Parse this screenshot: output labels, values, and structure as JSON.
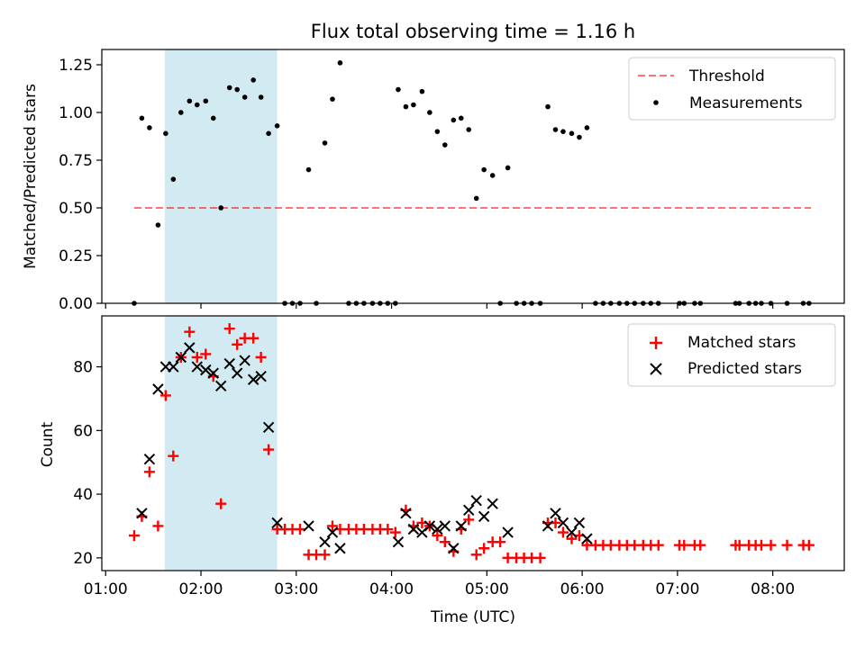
{
  "chart_data": [
    {
      "type": "scatter",
      "title": "Flux total observing time = 1.16 h",
      "xlabel": "",
      "ylabel": "Matched/Predicted stars",
      "ylim": [
        0,
        1.33
      ],
      "yticks": [
        "0.00",
        "0.25",
        "0.50",
        "0.75",
        "1.00",
        "1.25"
      ],
      "xlim_hours": [
        0.96,
        8.75
      ],
      "shaded_region_hours": [
        1.62,
        2.8
      ],
      "shaded_color": "#add8e6",
      "grid": false,
      "legend_position": "top-right",
      "threshold": {
        "name": "Threshold",
        "value": 0.5,
        "x_range_hours": [
          1.3,
          8.4
        ],
        "color": "#ff0000",
        "style": "dashed"
      },
      "series": [
        {
          "name": "Measurements",
          "color": "#000000",
          "marker": "dot",
          "points": [
            [
              1.3,
              0
            ],
            [
              1.38,
              0.97
            ],
            [
              1.46,
              0.92
            ],
            [
              1.55,
              0.41
            ],
            [
              1.63,
              0.89
            ],
            [
              1.71,
              0.65
            ],
            [
              1.79,
              1.0
            ],
            [
              1.88,
              1.06
            ],
            [
              1.96,
              1.04
            ],
            [
              2.05,
              1.06
            ],
            [
              2.13,
              0.97
            ],
            [
              2.21,
              0.5
            ],
            [
              2.3,
              1.13
            ],
            [
              2.38,
              1.12
            ],
            [
              2.46,
              1.08
            ],
            [
              2.55,
              1.17
            ],
            [
              2.63,
              1.08
            ],
            [
              2.71,
              0.89
            ],
            [
              2.8,
              0.93
            ],
            [
              2.88,
              0
            ],
            [
              2.96,
              0
            ],
            [
              3.04,
              0
            ],
            [
              3.13,
              0.7
            ],
            [
              3.21,
              0
            ],
            [
              3.3,
              0.84
            ],
            [
              3.38,
              1.07
            ],
            [
              3.46,
              1.26
            ],
            [
              3.55,
              0
            ],
            [
              3.63,
              0
            ],
            [
              3.71,
              0
            ],
            [
              3.8,
              0
            ],
            [
              3.88,
              0
            ],
            [
              3.96,
              0
            ],
            [
              4.04,
              0
            ],
            [
              4.07,
              1.12
            ],
            [
              4.15,
              1.03
            ],
            [
              4.23,
              1.04
            ],
            [
              4.32,
              1.11
            ],
            [
              4.4,
              1.0
            ],
            [
              4.48,
              0.9
            ],
            [
              4.56,
              0.83
            ],
            [
              4.65,
              0.96
            ],
            [
              4.73,
              0.97
            ],
            [
              4.81,
              0.91
            ],
            [
              4.89,
              0.55
            ],
            [
              4.97,
              0.7
            ],
            [
              5.06,
              0.67
            ],
            [
              5.14,
              0
            ],
            [
              5.22,
              0.71
            ],
            [
              5.31,
              0
            ],
            [
              5.39,
              0
            ],
            [
              5.47,
              0
            ],
            [
              5.56,
              0
            ],
            [
              5.64,
              1.03
            ],
            [
              5.72,
              0.91
            ],
            [
              5.8,
              0.9
            ],
            [
              5.89,
              0.89
            ],
            [
              5.97,
              0.87
            ],
            [
              6.05,
              0.92
            ],
            [
              6.14,
              0
            ],
            [
              6.22,
              0
            ],
            [
              6.3,
              0
            ],
            [
              6.39,
              0
            ],
            [
              6.47,
              0
            ],
            [
              6.55,
              0
            ],
            [
              6.64,
              0
            ],
            [
              6.72,
              0
            ],
            [
              6.8,
              0
            ],
            [
              7.02,
              0
            ],
            [
              7.07,
              0
            ],
            [
              7.18,
              0
            ],
            [
              7.24,
              0
            ],
            [
              7.61,
              0
            ],
            [
              7.65,
              0
            ],
            [
              7.75,
              0
            ],
            [
              7.82,
              0
            ],
            [
              7.88,
              0
            ],
            [
              7.98,
              0
            ],
            [
              8.15,
              0
            ],
            [
              8.32,
              0
            ],
            [
              8.38,
              0
            ]
          ]
        }
      ]
    },
    {
      "type": "scatter",
      "title": "",
      "xlabel": "Time (UTC)",
      "ylabel": "Count",
      "ylim": [
        16,
        96
      ],
      "yticks": [
        "20",
        "40",
        "60",
        "80"
      ],
      "xlim_hours": [
        0.96,
        8.75
      ],
      "xticks": [
        "01:00",
        "02:00",
        "03:00",
        "04:00",
        "05:00",
        "06:00",
        "07:00",
        "08:00"
      ],
      "shaded_region_hours": [
        1.62,
        2.8
      ],
      "shaded_color": "#add8e6",
      "grid": false,
      "legend_position": "top-right",
      "series": [
        {
          "name": "Matched stars",
          "color": "#ff0000",
          "marker": "plus",
          "points": [
            [
              1.3,
              27
            ],
            [
              1.38,
              33
            ],
            [
              1.46,
              47
            ],
            [
              1.55,
              30
            ],
            [
              1.63,
              71
            ],
            [
              1.71,
              52
            ],
            [
              1.79,
              83
            ],
            [
              1.88,
              91
            ],
            [
              1.96,
              83
            ],
            [
              2.05,
              84
            ],
            [
              2.13,
              77
            ],
            [
              2.21,
              37
            ],
            [
              2.3,
              92
            ],
            [
              2.38,
              87
            ],
            [
              2.46,
              89
            ],
            [
              2.55,
              89
            ],
            [
              2.63,
              83
            ],
            [
              2.71,
              54
            ],
            [
              2.8,
              29
            ],
            [
              2.88,
              29
            ],
            [
              2.96,
              29
            ],
            [
              3.04,
              29
            ],
            [
              3.13,
              21
            ],
            [
              3.21,
              21
            ],
            [
              3.3,
              21
            ],
            [
              3.38,
              30
            ],
            [
              3.46,
              29
            ],
            [
              3.55,
              29
            ],
            [
              3.63,
              29
            ],
            [
              3.71,
              29
            ],
            [
              3.8,
              29
            ],
            [
              3.88,
              29
            ],
            [
              3.96,
              29
            ],
            [
              4.04,
              28
            ],
            [
              4.15,
              35
            ],
            [
              4.23,
              30
            ],
            [
              4.32,
              31
            ],
            [
              4.4,
              30
            ],
            [
              4.48,
              27
            ],
            [
              4.56,
              25
            ],
            [
              4.65,
              22
            ],
            [
              4.73,
              29
            ],
            [
              4.81,
              32
            ],
            [
              4.89,
              21
            ],
            [
              4.97,
              23
            ],
            [
              5.06,
              25
            ],
            [
              5.14,
              25
            ],
            [
              5.22,
              20
            ],
            [
              5.31,
              20
            ],
            [
              5.39,
              20
            ],
            [
              5.47,
              20
            ],
            [
              5.56,
              20
            ],
            [
              5.64,
              31
            ],
            [
              5.72,
              31
            ],
            [
              5.8,
              28
            ],
            [
              5.89,
              26
            ],
            [
              5.97,
              27
            ],
            [
              6.05,
              24
            ],
            [
              6.14,
              24
            ],
            [
              6.22,
              24
            ],
            [
              6.3,
              24
            ],
            [
              6.39,
              24
            ],
            [
              6.47,
              24
            ],
            [
              6.55,
              24
            ],
            [
              6.64,
              24
            ],
            [
              6.72,
              24
            ],
            [
              6.8,
              24
            ],
            [
              7.02,
              24
            ],
            [
              7.07,
              24
            ],
            [
              7.18,
              24
            ],
            [
              7.24,
              24
            ],
            [
              7.61,
              24
            ],
            [
              7.65,
              24
            ],
            [
              7.75,
              24
            ],
            [
              7.82,
              24
            ],
            [
              7.88,
              24
            ],
            [
              7.98,
              24
            ],
            [
              8.15,
              24
            ],
            [
              8.32,
              24
            ],
            [
              8.38,
              24
            ]
          ]
        },
        {
          "name": "Predicted stars",
          "color": "#000000",
          "marker": "x",
          "points": [
            [
              1.38,
              34
            ],
            [
              1.46,
              51
            ],
            [
              1.55,
              73
            ],
            [
              1.63,
              80
            ],
            [
              1.71,
              80
            ],
            [
              1.79,
              83
            ],
            [
              1.88,
              86
            ],
            [
              1.96,
              80
            ],
            [
              2.05,
              79
            ],
            [
              2.13,
              78
            ],
            [
              2.21,
              74
            ],
            [
              2.3,
              81
            ],
            [
              2.38,
              78
            ],
            [
              2.46,
              82
            ],
            [
              2.55,
              76
            ],
            [
              2.63,
              77
            ],
            [
              2.71,
              61
            ],
            [
              2.8,
              31
            ],
            [
              3.13,
              30
            ],
            [
              3.3,
              25
            ],
            [
              3.38,
              28
            ],
            [
              3.46,
              23
            ],
            [
              4.07,
              25
            ],
            [
              4.15,
              34
            ],
            [
              4.23,
              29
            ],
            [
              4.32,
              28
            ],
            [
              4.4,
              30
            ],
            [
              4.48,
              29
            ],
            [
              4.56,
              30
            ],
            [
              4.65,
              23
            ],
            [
              4.73,
              30
            ],
            [
              4.81,
              35
            ],
            [
              4.89,
              38
            ],
            [
              4.97,
              33
            ],
            [
              5.06,
              37
            ],
            [
              5.22,
              28
            ],
            [
              5.64,
              30
            ],
            [
              5.72,
              34
            ],
            [
              5.8,
              31
            ],
            [
              5.89,
              28
            ],
            [
              5.97,
              31
            ],
            [
              6.05,
              26
            ]
          ]
        }
      ]
    }
  ]
}
